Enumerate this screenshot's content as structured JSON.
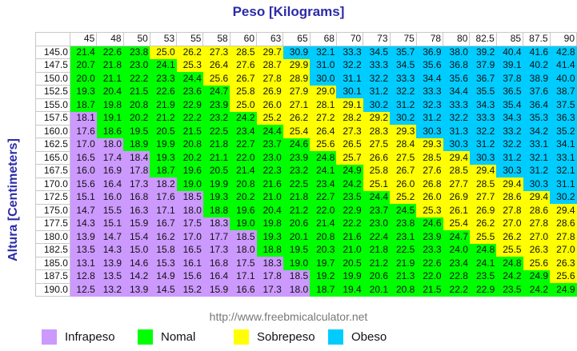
{
  "title": "Peso [Kilograms]",
  "y_axis_label": "Altura [Centimeters]",
  "url": "http://www.freebmicalculator.net",
  "colors": {
    "U": "#cc99ff",
    "N": "#00ff00",
    "S": "#ffff00",
    "O": "#00ccff"
  },
  "legend": [
    {
      "key": "U",
      "label": "Infrapeso",
      "color": "#cc99ff"
    },
    {
      "key": "N",
      "label": "Nomal",
      "color": "#00ff00"
    },
    {
      "key": "S",
      "label": "Sobrepeso",
      "color": "#ffff00"
    },
    {
      "key": "O",
      "label": "Obeso",
      "color": "#00ccff"
    }
  ],
  "chart_data": {
    "type": "table",
    "title": "Peso [Kilograms]",
    "xlabel": "Peso [Kilograms]",
    "ylabel": "Altura [Centimeters]",
    "columns": [
      "45",
      "48",
      "50",
      "53",
      "55",
      "58",
      "60",
      "63",
      "65",
      "68",
      "70",
      "73",
      "75",
      "78",
      "80",
      "82.5",
      "85",
      "87.5",
      "90"
    ],
    "rows": [
      {
        "height": "145.0",
        "values": [
          "21.4",
          "22.6",
          "23.8",
          "25.0",
          "26.2",
          "27.3",
          "28.5",
          "29.7",
          "30.9",
          "32.1",
          "33.3",
          "34.5",
          "35.7",
          "36.9",
          "38.0",
          "39.2",
          "40.4",
          "41.6",
          "42.8"
        ],
        "cats": "NNNSSSSSOOOOOOOOOOO"
      },
      {
        "height": "147.5",
        "values": [
          "20.7",
          "21.8",
          "23.0",
          "24.1",
          "25.3",
          "26.4",
          "27.6",
          "28.7",
          "29.9",
          "31.0",
          "32.2",
          "33.3",
          "34.5",
          "35.6",
          "36.8",
          "37.9",
          "39.1",
          "40.2",
          "41.4"
        ],
        "cats": "NNNNSSSSSOOOOOOOOOO"
      },
      {
        "height": "150.0",
        "values": [
          "20.0",
          "21.1",
          "22.2",
          "23.3",
          "24.4",
          "25.6",
          "26.7",
          "27.8",
          "28.9",
          "30.0",
          "31.1",
          "32.2",
          "33.3",
          "34.4",
          "35.6",
          "36.7",
          "37.8",
          "38.9",
          "40.0"
        ],
        "cats": "NNNNNSSSSOOOOOOOOOO"
      },
      {
        "height": "152.5",
        "values": [
          "19.3",
          "20.4",
          "21.5",
          "22.6",
          "23.6",
          "24.7",
          "25.8",
          "26.9",
          "27.9",
          "29.0",
          "30.1",
          "31.2",
          "32.2",
          "33.3",
          "34.4",
          "35.5",
          "36.5",
          "37.6",
          "38.7"
        ],
        "cats": "NNNNNNSSSSOOOOOOOOO"
      },
      {
        "height": "155.0",
        "values": [
          "18.7",
          "19.8",
          "20.8",
          "21.9",
          "22.9",
          "23.9",
          "25.0",
          "26.0",
          "27.1",
          "28.1",
          "29.1",
          "30.2",
          "31.2",
          "32.3",
          "33.3",
          "34.3",
          "35.4",
          "36.4",
          "37.5"
        ],
        "cats": "NNNNNNSSSSSOOOOOOOO"
      },
      {
        "height": "157.5",
        "values": [
          "18.1",
          "19.1",
          "20.2",
          "21.2",
          "22.2",
          "23.2",
          "24.2",
          "25.2",
          "26.2",
          "27.2",
          "28.2",
          "29.2",
          "30.2",
          "31.2",
          "32.2",
          "33.3",
          "34.3",
          "35.3",
          "36.3"
        ],
        "cats": "UNNNNNNSSSSSOOOOOOO"
      },
      {
        "height": "160.0",
        "values": [
          "17.6",
          "18.6",
          "19.5",
          "20.5",
          "21.5",
          "22.5",
          "23.4",
          "24.4",
          "25.4",
          "26.4",
          "27.3",
          "28.3",
          "29.3",
          "30.3",
          "31.3",
          "32.2",
          "33.2",
          "34.2",
          "35.2"
        ],
        "cats": "UNNNNNNNSSSSSOOOOOO"
      },
      {
        "height": "162.5",
        "values": [
          "17.0",
          "18.0",
          "18.9",
          "19.9",
          "20.8",
          "21.8",
          "22.7",
          "23.7",
          "24.6",
          "25.6",
          "26.5",
          "27.5",
          "28.4",
          "29.3",
          "30.3",
          "31.2",
          "32.2",
          "33.1",
          "34.1"
        ],
        "cats": "UUNNNNNNNSSSSSOOOOO"
      },
      {
        "height": "165.0",
        "values": [
          "16.5",
          "17.4",
          "18.4",
          "19.3",
          "20.2",
          "21.1",
          "22.0",
          "23.0",
          "23.9",
          "24.8",
          "25.7",
          "26.6",
          "27.5",
          "28.5",
          "29.4",
          "30.3",
          "31.2",
          "32.1",
          "33.1"
        ],
        "cats": "UUUNNNNNNNSSSSSOOOO"
      },
      {
        "height": "167.5",
        "values": [
          "16.0",
          "16.9",
          "17.8",
          "18.7",
          "19.6",
          "20.5",
          "21.4",
          "22.3",
          "23.2",
          "24.1",
          "24.9",
          "25.8",
          "26.7",
          "27.6",
          "28.5",
          "29.4",
          "30.3",
          "31.2",
          "32.1"
        ],
        "cats": "UUUNNNNNNNNSSSSSOOO"
      },
      {
        "height": "170.0",
        "values": [
          "15.6",
          "16.4",
          "17.3",
          "18.2",
          "19.0",
          "19.9",
          "20.8",
          "21.6",
          "22.5",
          "23.4",
          "24.2",
          "25.1",
          "26.0",
          "26.8",
          "27.7",
          "28.5",
          "29.4",
          "30.3",
          "31.1"
        ],
        "cats": "UUUUNNNNNNNSSSSSSOO"
      },
      {
        "height": "172.5",
        "values": [
          "15.1",
          "16.0",
          "16.8",
          "17.6",
          "18.5",
          "19.3",
          "20.2",
          "21.0",
          "21.8",
          "22.7",
          "23.5",
          "24.4",
          "25.2",
          "26.0",
          "26.9",
          "27.7",
          "28.6",
          "29.4",
          "30.2"
        ],
        "cats": "UUUUUNNNNNNNSSSSSSO"
      },
      {
        "height": "175.0",
        "values": [
          "14.7",
          "15.5",
          "16.3",
          "17.1",
          "18.0",
          "18.8",
          "19.6",
          "20.4",
          "21.2",
          "22.0",
          "22.9",
          "23.7",
          "24.5",
          "25.3",
          "26.1",
          "26.9",
          "27.8",
          "28.6",
          "29.4"
        ],
        "cats": "UUUUUNNNNNNNNSSSSSS"
      },
      {
        "height": "177.5",
        "values": [
          "14.3",
          "15.1",
          "15.9",
          "16.7",
          "17.5",
          "18.3",
          "19.0",
          "19.8",
          "20.6",
          "21.4",
          "22.2",
          "23.0",
          "23.8",
          "24.6",
          "25.4",
          "26.2",
          "27.0",
          "27.8",
          "28.6"
        ],
        "cats": "UUUUUUNNNNNNNNSSSSS"
      },
      {
        "height": "180.0",
        "values": [
          "13.9",
          "14.7",
          "15.4",
          "16.2",
          "17.0",
          "17.7",
          "18.5",
          "19.3",
          "20.1",
          "20.8",
          "21.6",
          "22.4",
          "23.1",
          "23.9",
          "24.7",
          "25.5",
          "26.2",
          "27.0",
          "27.8"
        ],
        "cats": "UUUUUUUNNNNNNNNSSSS"
      },
      {
        "height": "182.5",
        "values": [
          "13.5",
          "14.3",
          "15.0",
          "15.8",
          "16.5",
          "17.3",
          "18.0",
          "18.8",
          "19.5",
          "20.3",
          "21.0",
          "21.8",
          "22.5",
          "23.3",
          "24.0",
          "24.8",
          "25.5",
          "26.3",
          "27.0"
        ],
        "cats": "UUUUUUUNNNNNNNNNSSS"
      },
      {
        "height": "185.0",
        "values": [
          "13.1",
          "13.9",
          "14.6",
          "15.3",
          "16.1",
          "16.8",
          "17.5",
          "18.3",
          "19.0",
          "19.7",
          "20.5",
          "21.2",
          "21.9",
          "22.6",
          "23.4",
          "24.1",
          "24.8",
          "25.6",
          "26.3"
        ],
        "cats": "UUUUUUUUNNNNNNNNNSS"
      },
      {
        "height": "187.5",
        "values": [
          "12.8",
          "13.5",
          "14.2",
          "14.9",
          "15.6",
          "16.4",
          "17.1",
          "17.8",
          "18.5",
          "19.2",
          "19.9",
          "20.6",
          "21.3",
          "22.0",
          "22.8",
          "23.5",
          "24.2",
          "24.9",
          "25.6"
        ],
        "cats": "UUUUUUUUUNNNNNNNNNS"
      },
      {
        "height": "190.0",
        "values": [
          "12.5",
          "13.2",
          "13.9",
          "14.5",
          "15.2",
          "15.9",
          "16.6",
          "17.3",
          "18.0",
          "18.7",
          "19.4",
          "20.1",
          "20.8",
          "21.5",
          "22.2",
          "22.9",
          "23.5",
          "24.2",
          "24.9"
        ],
        "cats": "UUUUUUUUUNNNNNNNNNN"
      }
    ]
  }
}
